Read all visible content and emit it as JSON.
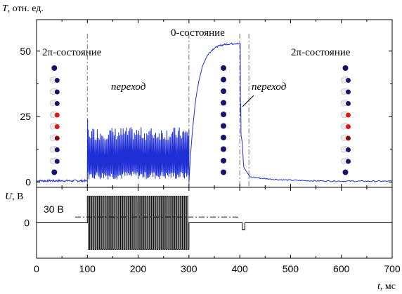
{
  "chart_data": [
    {
      "type": "line",
      "ylabel_symbol": "T",
      "ylabel_unit": ", отн. ед.",
      "xlim": [
        0,
        700
      ],
      "ylim": [
        -2,
        62
      ],
      "yticks": [
        0,
        25,
        50
      ],
      "grid": false,
      "series_color": "#1f2fd6",
      "regions": [
        {
          "x": [
            0,
            100
          ],
          "y": [
            0.5,
            0.5
          ],
          "label": "2π-состояние"
        },
        {
          "x": [
            100,
            300
          ],
          "y_mean": 7,
          "y_osc_max": 20,
          "label": "переход"
        },
        {
          "x": [
            300,
            405
          ],
          "y_start": 0,
          "y_plateau": 53,
          "label": "0-состояние"
        },
        {
          "x": [
            405,
            420
          ],
          "y_start": 53,
          "y_end": 2,
          "spike_x": 402,
          "spike_y": 30,
          "label": "переход"
        },
        {
          "x": [
            420,
            700
          ],
          "y_start": 2,
          "y_end": 0.3,
          "label": "2π-состояние"
        }
      ],
      "spike_at_100": 24,
      "annotations": [
        "2π-состояние",
        "переход",
        "0-состояние",
        "переход",
        "2π-состояние"
      ],
      "vlines_x": [
        100,
        300,
        400,
        418
      ]
    },
    {
      "type": "line",
      "ylabel_symbol": "U",
      "ylabel_unit": ", В",
      "xlabel_symbol": "t",
      "xlabel_unit": ", мс",
      "xlim": [
        0,
        700
      ],
      "xticks": [
        0,
        100,
        200,
        300,
        400,
        500,
        600,
        700
      ],
      "ylim": [
        -40,
        40
      ],
      "yticks": [
        0
      ],
      "grid": false,
      "series_color": "#000000",
      "square_wave": {
        "x": [
          100,
          300
        ],
        "high": 30,
        "low": -30,
        "periods": 46
      },
      "pulse": {
        "x": [
          405,
          410
        ],
        "y": -8
      },
      "level_label": "30 В",
      "level_line": {
        "y": 5,
        "x": [
          0,
          400
        ]
      }
    }
  ],
  "molecule_colors": {
    "blue": "#15156e",
    "red": "#e01818",
    "darkred": "#7a1010",
    "white": "#ececec"
  }
}
